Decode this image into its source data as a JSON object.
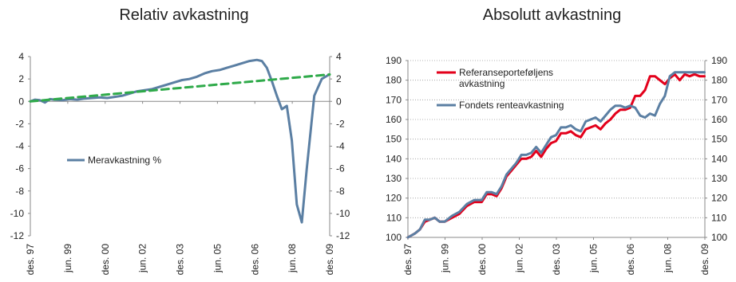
{
  "chart_data": [
    {
      "type": "line",
      "title": "Relativ avkastning",
      "ylim": [
        -12,
        4
      ],
      "yticks": [
        -12,
        -10,
        -8,
        -6,
        -4,
        -2,
        0,
        2,
        4
      ],
      "secondary_yticks": [
        -12,
        -10,
        -8,
        -6,
        -4,
        -2,
        0,
        2,
        4
      ],
      "xlim": [
        1997.917,
        2009.917
      ],
      "xtick_labels": [
        "des. 97",
        "jun. 99",
        "des. 00",
        "jun. 02",
        "des. 03",
        "jun. 05",
        "des. 06",
        "jun. 08",
        "des. 09"
      ],
      "xtick_values": [
        1997.917,
        1999.417,
        2000.917,
        2002.417,
        2003.917,
        2005.417,
        2006.917,
        2008.417,
        2009.917
      ],
      "grid": false,
      "legend": "center-left",
      "series": [
        {
          "name": "Meravkastning %",
          "color": "#5b7fa3",
          "dashed": false,
          "x": [
            1997.917,
            1998.1,
            1998.3,
            1998.5,
            1998.7,
            1998.9,
            1999.2,
            1999.5,
            1999.8,
            2000.1,
            2000.4,
            2000.7,
            2001.0,
            2001.3,
            2001.6,
            2001.9,
            2002.2,
            2002.5,
            2002.8,
            2003.1,
            2003.4,
            2003.7,
            2004.0,
            2004.3,
            2004.6,
            2004.9,
            2005.2,
            2005.5,
            2005.8,
            2006.1,
            2006.4,
            2006.7,
            2007.0,
            2007.2,
            2007.4,
            2007.6,
            2007.8,
            2008.0,
            2008.2,
            2008.4,
            2008.6,
            2008.8,
            2009.0,
            2009.3,
            2009.6,
            2009.9
          ],
          "y": [
            0,
            0.15,
            0.1,
            -0.1,
            0.2,
            0.15,
            0.1,
            0.2,
            0.15,
            0.25,
            0.3,
            0.35,
            0.3,
            0.4,
            0.5,
            0.7,
            0.9,
            1.0,
            1.1,
            1.3,
            1.5,
            1.7,
            1.9,
            2.0,
            2.2,
            2.5,
            2.7,
            2.8,
            3.0,
            3.2,
            3.4,
            3.6,
            3.7,
            3.6,
            3.0,
            1.8,
            0.5,
            -0.7,
            -0.4,
            -3.5,
            -9.2,
            -10.8,
            -6.0,
            0.5,
            2.0,
            2.4
          ]
        },
        {
          "name": "",
          "color": "#2faa4a",
          "dashed": true,
          "x": [
            1997.917,
            2009.917
          ],
          "y": [
            0,
            2.4
          ]
        }
      ]
    },
    {
      "type": "line",
      "title": "Absolutt avkastning",
      "ylim": [
        100,
        190
      ],
      "yticks": [
        100,
        110,
        120,
        130,
        140,
        150,
        160,
        170,
        180,
        190
      ],
      "secondary_yticks": [
        100,
        110,
        120,
        130,
        140,
        150,
        160,
        170,
        180,
        190
      ],
      "xlim": [
        1997.917,
        2009.917
      ],
      "xtick_labels": [
        "des. 97",
        "jun. 99",
        "des. 00",
        "jun. 02",
        "des. 03",
        "jun. 05",
        "des. 06",
        "jun. 08",
        "des. 09"
      ],
      "xtick_values": [
        1997.917,
        1999.417,
        2000.917,
        2002.417,
        2003.917,
        2005.417,
        2006.917,
        2008.417,
        2009.917
      ],
      "grid": true,
      "legend": "top-left",
      "series": [
        {
          "name": "Referanseporteføljens avkastning",
          "legend_lines": [
            "Referanseporteføljens",
            "avkastning"
          ],
          "color": "#e3001b",
          "x": [
            1997.917,
            1998.2,
            1998.4,
            1998.6,
            1998.8,
            1999.0,
            1999.2,
            1999.4,
            1999.7,
            2000.0,
            2000.3,
            2000.6,
            2000.9,
            2001.1,
            2001.3,
            2001.5,
            2001.7,
            2001.9,
            2002.1,
            2002.3,
            2002.5,
            2002.7,
            2002.9,
            2003.1,
            2003.3,
            2003.5,
            2003.7,
            2003.9,
            2004.1,
            2004.3,
            2004.5,
            2004.7,
            2004.9,
            2005.1,
            2005.3,
            2005.5,
            2005.7,
            2005.9,
            2006.1,
            2006.3,
            2006.5,
            2006.7,
            2006.9,
            2007.1,
            2007.3,
            2007.5,
            2007.7,
            2007.9,
            2008.1,
            2008.3,
            2008.5,
            2008.7,
            2008.9,
            2009.1,
            2009.3,
            2009.5,
            2009.7,
            2009.9
          ],
          "y": [
            100,
            102,
            104,
            108,
            109,
            110,
            108,
            108,
            110,
            112,
            116,
            118,
            118,
            122,
            122,
            121,
            125,
            131,
            134,
            137,
            140,
            140,
            141,
            144,
            141,
            145,
            148,
            149,
            153,
            153,
            154,
            152,
            151,
            155,
            156,
            157,
            155,
            158,
            160,
            163,
            165,
            165,
            166,
            172,
            172,
            175,
            182,
            182,
            180,
            178,
            181,
            183,
            180,
            183,
            182,
            183,
            182,
            182
          ]
        },
        {
          "name": "Fondets renteavkastning",
          "color": "#5b7fa3",
          "x": [
            1997.917,
            1998.2,
            1998.4,
            1998.6,
            1998.8,
            1999.0,
            1999.2,
            1999.4,
            1999.7,
            2000.0,
            2000.3,
            2000.6,
            2000.9,
            2001.1,
            2001.3,
            2001.5,
            2001.7,
            2001.9,
            2002.1,
            2002.3,
            2002.5,
            2002.7,
            2002.9,
            2003.1,
            2003.3,
            2003.5,
            2003.7,
            2003.9,
            2004.1,
            2004.3,
            2004.5,
            2004.7,
            2004.9,
            2005.1,
            2005.3,
            2005.5,
            2005.7,
            2005.9,
            2006.1,
            2006.3,
            2006.5,
            2006.7,
            2006.9,
            2007.1,
            2007.3,
            2007.5,
            2007.7,
            2007.9,
            2008.1,
            2008.3,
            2008.5,
            2008.7,
            2008.9,
            2009.1,
            2009.3,
            2009.5,
            2009.7,
            2009.9
          ],
          "y": [
            100,
            102,
            104,
            109,
            109,
            110,
            108,
            108,
            111,
            113,
            117,
            119,
            119,
            123,
            123,
            122,
            126,
            132,
            135,
            138,
            142,
            142,
            143,
            146,
            143,
            147,
            151,
            152,
            156,
            156,
            157,
            155,
            154,
            159,
            160,
            161,
            159,
            162,
            165,
            167,
            167,
            166,
            167,
            166,
            162,
            161,
            163,
            162,
            168,
            172,
            182,
            184,
            184,
            184,
            184,
            184,
            184,
            184
          ]
        }
      ]
    }
  ]
}
